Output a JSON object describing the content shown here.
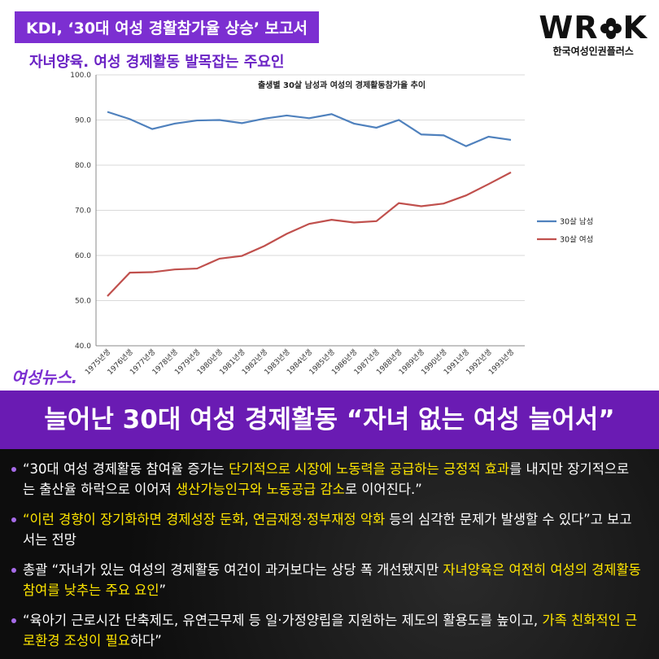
{
  "header": {
    "title": "KDI, ‘30대 여성 경활참가율 상승’ 보고서",
    "subtitle": "자녀양육. 여성 경제활동 발목잡는 주요인"
  },
  "logo": {
    "mark_left": "WR",
    "mark_right": "K",
    "name": "한국여성인권플러스"
  },
  "source": "여성뉴스.",
  "chart_data": {
    "type": "line",
    "title": "출생별 30살 남성과 여성의 경제활동참가율 추이",
    "categories": [
      "1975년생",
      "1976년생",
      "1977년생",
      "1978년생",
      "1979년생",
      "1980년생",
      "1981년생",
      "1982년생",
      "1983년생",
      "1984년생",
      "1985년생",
      "1986년생",
      "1987년생",
      "1988년생",
      "1989년생",
      "1990년생",
      "1991년생",
      "1992년생",
      "1993년생"
    ],
    "series": [
      {
        "name": "30살 남성",
        "color": "#4f81bd",
        "values": [
          91.8,
          90.2,
          88.0,
          89.2,
          89.9,
          90.0,
          89.3,
          90.3,
          91.0,
          90.4,
          91.3,
          89.2,
          88.3,
          90.0,
          86.8,
          86.6,
          84.2,
          86.3,
          85.6
        ]
      },
      {
        "name": "30살 여성",
        "color": "#c0504d",
        "values": [
          51.0,
          56.2,
          56.3,
          56.9,
          57.1,
          59.3,
          59.9,
          62.1,
          64.8,
          67.0,
          67.9,
          67.3,
          67.6,
          71.6,
          70.9,
          71.5,
          73.3,
          75.8,
          78.4
        ]
      }
    ],
    "ylim": [
      40,
      100
    ],
    "yticks": [
      {
        "value": 40,
        "label": "40.0"
      },
      {
        "value": 50,
        "label": "50.0"
      },
      {
        "value": 60,
        "label": "60.0"
      },
      {
        "value": 70,
        "label": "70.0"
      },
      {
        "value": 80,
        "label": "80.0"
      },
      {
        "value": 90,
        "label": "90.0"
      },
      {
        "value": 100,
        "label": "100.0"
      }
    ],
    "grid": true,
    "legend": "right"
  },
  "headline": "늘어난 30대 여성 경제활동 “자녀 없는 여성 늘어서”",
  "bullets": [
    [
      {
        "text": "“30대 여성 경제활동 참여율 증가는 ",
        "highlight": false
      },
      {
        "text": "단기적으로 시장에 노동력을 공급하는 긍정적 효과",
        "highlight": true
      },
      {
        "text": "를 내지만 장기적으로는 출산율 하락으로 이어져 ",
        "highlight": false
      },
      {
        "text": "생산가능인구와 노동공급 감소",
        "highlight": true
      },
      {
        "text": "로 이어진다.”",
        "highlight": false
      }
    ],
    [
      {
        "text": "“이런 경향이 장기화하면 경제성장 둔화, 연금재정·정부재정 악화",
        "highlight": true
      },
      {
        "text": " 등의 심각한 문제가 발생할 수 있다”고 보고서는 전망",
        "highlight": false
      }
    ],
    [
      {
        "text": "총괄 “자녀가 있는 여성의 경제활동 여건이 과거보다는 상당 폭 개선됐지만 ",
        "highlight": false
      },
      {
        "text": "자녀양육은 여전히 여성의 경제활동 참여를 낮추는 주요 요인",
        "highlight": true
      },
      {
        "text": "”",
        "highlight": false
      }
    ],
    [
      {
        "text": "“육아기 근로시간 단축제도, 유연근무제 등 일·가정양립을 지원하는 제도의 활용도를 높이고, ",
        "highlight": false
      },
      {
        "text": "가족 친화적인 근로환경 조성이 필요",
        "highlight": true
      },
      {
        "text": "하다”",
        "highlight": false
      }
    ]
  ]
}
